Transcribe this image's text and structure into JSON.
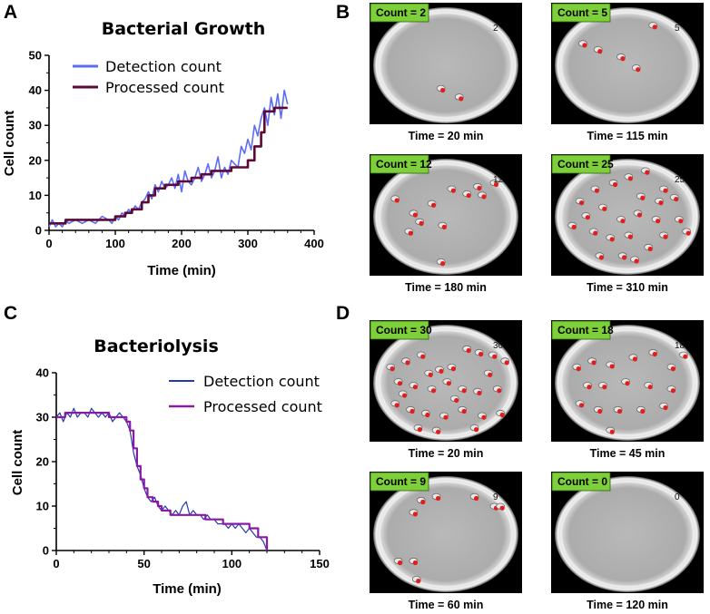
{
  "panels": {
    "A": "A",
    "B": "B",
    "C": "C",
    "D": "D"
  },
  "chart_data": [
    {
      "id": "growth",
      "type": "line",
      "title": "Bacterial Growth",
      "xlabel": "Time (min)",
      "ylabel": "Cell count",
      "xlim": [
        0,
        400
      ],
      "ylim": [
        0,
        50
      ],
      "xticks": [
        0,
        100,
        200,
        300,
        400
      ],
      "yticks": [
        0,
        10,
        20,
        30,
        40,
        50
      ],
      "legend_position": "top-left",
      "series": [
        {
          "name": "Detection count",
          "color": "#5b6cf5",
          "x": [
            0,
            5,
            10,
            15,
            20,
            25,
            30,
            40,
            50,
            60,
            70,
            80,
            90,
            95,
            100,
            105,
            110,
            115,
            120,
            125,
            130,
            135,
            140,
            145,
            150,
            155,
            160,
            165,
            170,
            175,
            180,
            185,
            190,
            195,
            200,
            205,
            210,
            215,
            220,
            225,
            230,
            235,
            240,
            245,
            250,
            255,
            260,
            265,
            270,
            275,
            280,
            285,
            290,
            295,
            300,
            305,
            310,
            315,
            320,
            325,
            330,
            335,
            340,
            345,
            350,
            355,
            360
          ],
          "values": [
            1,
            3,
            1,
            2,
            1,
            3,
            2,
            3,
            2,
            3,
            2,
            4,
            3,
            2,
            4,
            3,
            5,
            4,
            6,
            5,
            7,
            6,
            8,
            9,
            11,
            9,
            13,
            11,
            14,
            12,
            13,
            15,
            12,
            16,
            11,
            17,
            14,
            13,
            15,
            18,
            14,
            16,
            19,
            15,
            17,
            21,
            15,
            18,
            16,
            20,
            19,
            18,
            24,
            22,
            26,
            23,
            30,
            27,
            32,
            35,
            30,
            38,
            33,
            39,
            32,
            40,
            36
          ]
        },
        {
          "name": "Processed count",
          "color": "#5c0a35",
          "x": [
            0,
            15,
            25,
            60,
            85,
            100,
            115,
            125,
            140,
            150,
            160,
            175,
            195,
            215,
            230,
            245,
            260,
            275,
            290,
            300,
            310,
            320,
            325,
            340,
            360
          ],
          "values": [
            2,
            2,
            3,
            3,
            3,
            4,
            5,
            6,
            8,
            10,
            12,
            13,
            14,
            15,
            16,
            17,
            17,
            18,
            18,
            20,
            24,
            28,
            34,
            35,
            35
          ]
        }
      ]
    },
    {
      "id": "lysis",
      "type": "line",
      "title": "Bacteriolysis",
      "xlabel": "Time (min)",
      "ylabel": "Cell count",
      "xlim": [
        0,
        150
      ],
      "ylim": [
        0,
        40
      ],
      "xticks": [
        0,
        50,
        100,
        150
      ],
      "yticks": [
        0,
        10,
        20,
        30,
        40
      ],
      "legend_position": "top-right",
      "series": [
        {
          "name": "Detection count",
          "color": "#1f3bb0",
          "x": [
            0,
            2,
            4,
            6,
            8,
            10,
            12,
            14,
            16,
            18,
            20,
            22,
            24,
            26,
            28,
            30,
            32,
            34,
            36,
            38,
            40,
            42,
            44,
            46,
            48,
            50,
            52,
            54,
            56,
            58,
            60,
            62,
            64,
            66,
            68,
            70,
            72,
            74,
            76,
            78,
            80,
            82,
            84,
            86,
            88,
            90,
            92,
            94,
            96,
            98,
            100,
            102,
            104,
            106,
            108,
            110,
            112,
            114,
            116,
            118,
            120
          ],
          "values": [
            30,
            31,
            29,
            31,
            30,
            32,
            30,
            31,
            31,
            30,
            32,
            31,
            30,
            31,
            30,
            31,
            29,
            30,
            31,
            30,
            29,
            27,
            22,
            19,
            17,
            14,
            12,
            11,
            12,
            10,
            9,
            10,
            9,
            8,
            9,
            8,
            10,
            11,
            8,
            9,
            8,
            8,
            7,
            8,
            7,
            7,
            6,
            6,
            6,
            5,
            6,
            5,
            6,
            5,
            4,
            5,
            4,
            3,
            3,
            2,
            0
          ]
        },
        {
          "name": "Processed count",
          "color": "#8a1aa6",
          "x": [
            0,
            5,
            10,
            20,
            30,
            38,
            40,
            42,
            44,
            46,
            48,
            50,
            52,
            55,
            58,
            60,
            65,
            75,
            85,
            95,
            110,
            115,
            120
          ],
          "values": [
            30,
            31,
            31,
            31,
            30,
            30,
            29,
            27,
            23,
            19,
            16,
            14,
            12,
            11,
            10,
            9,
            8,
            8,
            7,
            6,
            5,
            3,
            0
          ]
        }
      ]
    }
  ],
  "panel_b_frames": [
    {
      "count_label": "Count = 2",
      "corner": "2",
      "time": "Time  = 20 min",
      "cells": [
        [
          0.48,
          0.72
        ],
        [
          0.6,
          0.79
        ]
      ]
    },
    {
      "count_label": "Count = 5",
      "corner": "5",
      "time": "Time  = 115 min",
      "cells": [
        [
          0.22,
          0.35
        ],
        [
          0.32,
          0.4
        ],
        [
          0.47,
          0.46
        ],
        [
          0.57,
          0.55
        ],
        [
          0.68,
          0.2
        ]
      ]
    },
    {
      "count_label": "Count = 12",
      "corner": "12",
      "time": "Time  = 180 min",
      "cells": [
        [
          0.18,
          0.38
        ],
        [
          0.3,
          0.5
        ],
        [
          0.42,
          0.42
        ],
        [
          0.49,
          0.6
        ],
        [
          0.65,
          0.34
        ],
        [
          0.72,
          0.28
        ],
        [
          0.83,
          0.25
        ],
        [
          0.75,
          0.35
        ],
        [
          0.55,
          0.3
        ],
        [
          0.27,
          0.65
        ],
        [
          0.48,
          0.9
        ],
        [
          0.34,
          0.57
        ]
      ]
    },
    {
      "count_label": "Count = 25",
      "corner": "25",
      "time": "Time  = 310 min",
      "cells": [
        [
          0.2,
          0.4
        ],
        [
          0.3,
          0.3
        ],
        [
          0.42,
          0.25
        ],
        [
          0.52,
          0.2
        ],
        [
          0.63,
          0.15
        ],
        [
          0.75,
          0.3
        ],
        [
          0.82,
          0.37
        ],
        [
          0.24,
          0.52
        ],
        [
          0.35,
          0.45
        ],
        [
          0.47,
          0.55
        ],
        [
          0.58,
          0.5
        ],
        [
          0.7,
          0.55
        ],
        [
          0.85,
          0.55
        ],
        [
          0.15,
          0.6
        ],
        [
          0.29,
          0.65
        ],
        [
          0.4,
          0.7
        ],
        [
          0.52,
          0.68
        ],
        [
          0.65,
          0.78
        ],
        [
          0.75,
          0.68
        ],
        [
          0.9,
          0.65
        ],
        [
          0.33,
          0.85
        ],
        [
          0.48,
          0.85
        ],
        [
          0.56,
          0.88
        ],
        [
          0.72,
          0.4
        ],
        [
          0.6,
          0.36
        ]
      ]
    }
  ],
  "panel_d_frames": [
    {
      "count_label": "Count = 30",
      "corner": "30",
      "time": "Time  = 20 min",
      "cells": [
        [
          0.15,
          0.4
        ],
        [
          0.25,
          0.35
        ],
        [
          0.35,
          0.3
        ],
        [
          0.47,
          0.42
        ],
        [
          0.55,
          0.4
        ],
        [
          0.65,
          0.25
        ],
        [
          0.73,
          0.28
        ],
        [
          0.82,
          0.3
        ],
        [
          0.9,
          0.35
        ],
        [
          0.2,
          0.52
        ],
        [
          0.3,
          0.55
        ],
        [
          0.42,
          0.58
        ],
        [
          0.52,
          0.52
        ],
        [
          0.62,
          0.58
        ],
        [
          0.72,
          0.6
        ],
        [
          0.85,
          0.58
        ],
        [
          0.18,
          0.7
        ],
        [
          0.28,
          0.75
        ],
        [
          0.38,
          0.78
        ],
        [
          0.5,
          0.8
        ],
        [
          0.62,
          0.75
        ],
        [
          0.75,
          0.8
        ],
        [
          0.87,
          0.78
        ],
        [
          0.33,
          0.9
        ],
        [
          0.45,
          0.92
        ],
        [
          0.7,
          0.9
        ],
        [
          0.57,
          0.66
        ],
        [
          0.4,
          0.45
        ],
        [
          0.23,
          0.62
        ],
        [
          0.79,
          0.45
        ]
      ]
    },
    {
      "count_label": "Count = 18",
      "corner": "18",
      "time": "Time  = 45 min",
      "cells": [
        [
          0.18,
          0.4
        ],
        [
          0.28,
          0.35
        ],
        [
          0.4,
          0.38
        ],
        [
          0.55,
          0.32
        ],
        [
          0.68,
          0.28
        ],
        [
          0.8,
          0.4
        ],
        [
          0.25,
          0.55
        ],
        [
          0.35,
          0.55
        ],
        [
          0.5,
          0.52
        ],
        [
          0.65,
          0.55
        ],
        [
          0.8,
          0.58
        ],
        [
          0.2,
          0.7
        ],
        [
          0.32,
          0.75
        ],
        [
          0.45,
          0.75
        ],
        [
          0.6,
          0.75
        ],
        [
          0.75,
          0.72
        ],
        [
          0.4,
          0.92
        ],
        [
          0.88,
          0.3
        ]
      ]
    },
    {
      "count_label": "Count = 9",
      "corner": "9",
      "time": "Time  = 60 min",
      "cells": [
        [
          0.35,
          0.25
        ],
        [
          0.3,
          0.35
        ],
        [
          0.45,
          0.22
        ],
        [
          0.7,
          0.22
        ],
        [
          0.83,
          0.3
        ],
        [
          0.87,
          0.3
        ],
        [
          0.2,
          0.75
        ],
        [
          0.3,
          0.75
        ],
        [
          0.32,
          0.9
        ]
      ]
    },
    {
      "count_label": "Count = 0",
      "corner": "0",
      "time": "Time  = 120 min",
      "cells": []
    }
  ]
}
